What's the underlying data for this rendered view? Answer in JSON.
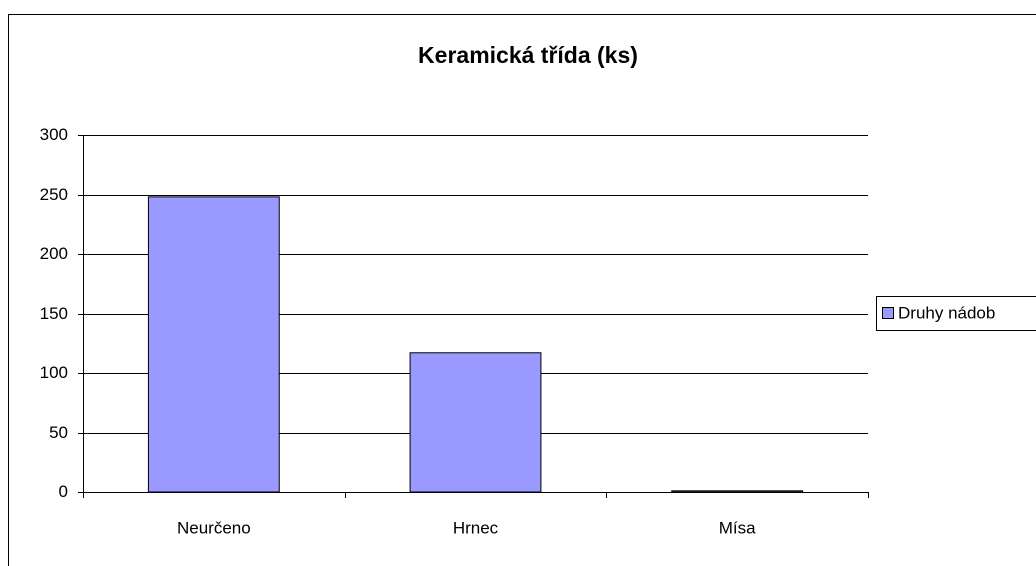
{
  "chart_data": {
    "type": "bar",
    "title": "Keramická třída (ks)",
    "categories": [
      "Neurčeno",
      "Hrnec",
      "Mísa"
    ],
    "series": [
      {
        "name": "Druhy nádob",
        "color": "#9999ff",
        "values": [
          248,
          117,
          1
        ]
      }
    ],
    "ylim": [
      0,
      300
    ],
    "yticks": [
      0,
      50,
      100,
      150,
      200,
      250,
      300
    ],
    "grid": true,
    "legend": "right"
  }
}
